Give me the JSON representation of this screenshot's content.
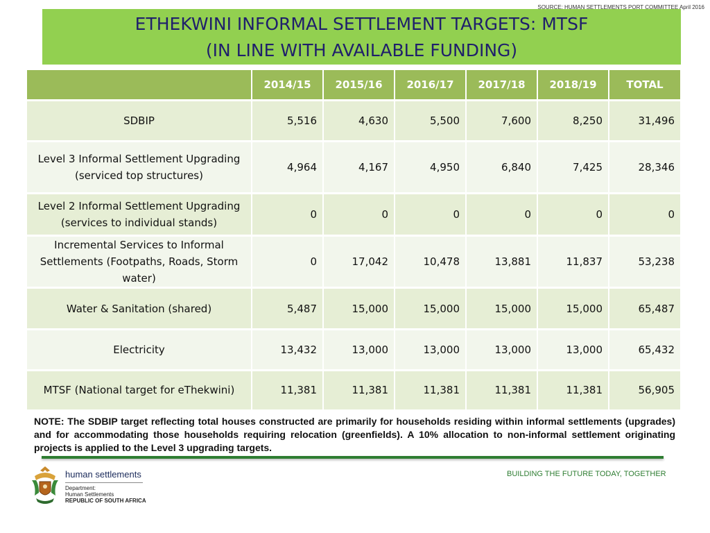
{
  "source_note": "SOURCE: HUMAN SETTLEMENTS PORT COMMITTEE April 2016",
  "title": {
    "line1": "ETHEKWINI  INFORMAL SETTLEMENT TARGETS: MTSF",
    "line2": "(IN LINE WITH AVAILABLE FUNDING)"
  },
  "table": {
    "headers": [
      "",
      "2014/15",
      "2015/16",
      "2016/17",
      "2017/18",
      "2018/19",
      "TOTAL"
    ],
    "rows": [
      {
        "label": "SDBIP",
        "values": [
          "5,516",
          "4,630",
          "5,500",
          "7,600",
          "8,250",
          "31,496"
        ]
      },
      {
        "label": "Level 3 Informal Settlement Upgrading (serviced top structures)",
        "values": [
          "4,964",
          "4,167",
          "4,950",
          "6,840",
          "7,425",
          "28,346"
        ]
      },
      {
        "label": "Level 2 Informal Settlement Upgrading (services to individual stands)",
        "values": [
          "0",
          "0",
          "0",
          "0",
          "0",
          "0"
        ]
      },
      {
        "label": "Incremental Services to Informal Settlements  (Footpaths, Roads, Storm water)",
        "values": [
          "0",
          "17,042",
          "10,478",
          "13,881",
          "11,837",
          "53,238"
        ]
      },
      {
        "label": "Water & Sanitation (shared)",
        "values": [
          "5,487",
          "15,000",
          "15,000",
          "15,000",
          "15,000",
          "65,487"
        ]
      },
      {
        "label": "Electricity",
        "values": [
          "13,432",
          "13,000",
          "13,000",
          "13,000",
          "13,000",
          "65,432"
        ]
      },
      {
        "label": "MTSF (National target for eThekwini)",
        "values": [
          "11,381",
          "11,381",
          "11,381",
          "11,381",
          "11,381",
          "56,905"
        ]
      }
    ]
  },
  "note": "NOTE: The SDBIP target reflecting total houses constructed are primarily for households residing within informal settlements (upgrades) and for accommodating those households requiring relocation (greenfields). A 10% allocation to non-informal settlement originating projects is applied to the Level 3 upgrading targets.",
  "footer": {
    "dept_name": "human settlements",
    "dept_line1": "Department:",
    "dept_line2": "Human Settlements",
    "dept_line3": "REPUBLIC OF SOUTH AFRICA",
    "slogan": "BUILDING THE FUTURE TODAY, TOGETHER",
    "crest_icon": "coat-of-arms-icon"
  }
}
